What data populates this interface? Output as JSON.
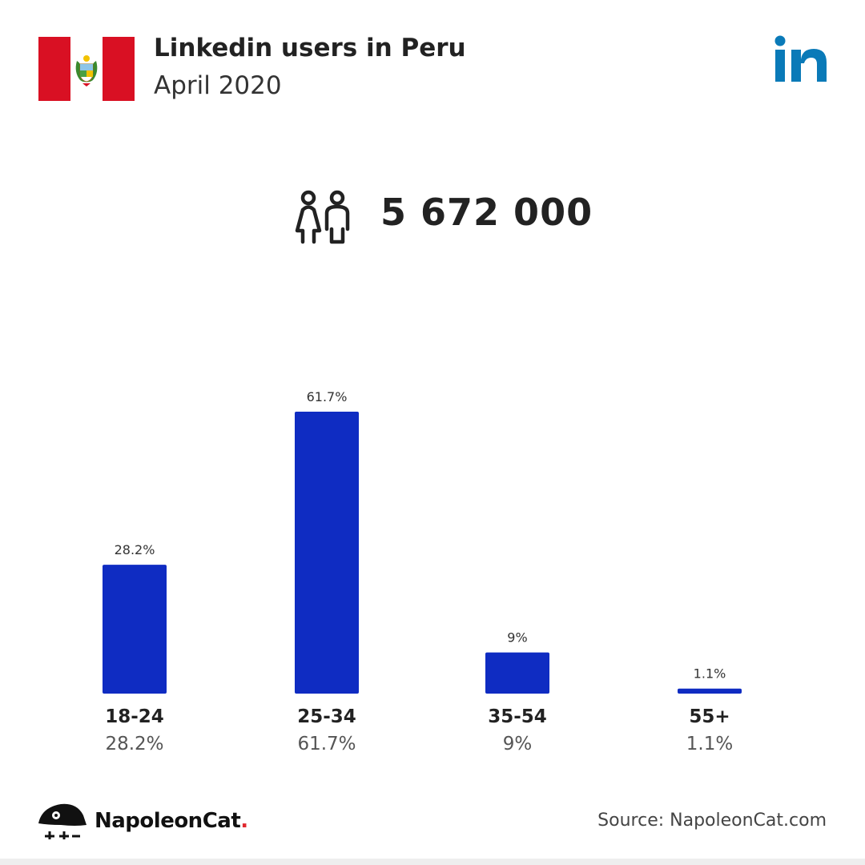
{
  "header": {
    "title": "Linkedin users in Peru",
    "subtitle": "April 2020"
  },
  "total": {
    "value": "5 672 000",
    "icon": "users-icon"
  },
  "chart_data": {
    "type": "bar",
    "categories": [
      "18-24",
      "25-34",
      "35-54",
      "55+"
    ],
    "values": [
      28.2,
      61.7,
      9,
      1.1
    ],
    "value_labels": [
      "28.2%",
      "61.7%",
      "9%",
      "1.1%"
    ],
    "ylim": [
      0,
      61.7
    ],
    "grid": false,
    "color": "#0f2cc2"
  },
  "footer": {
    "brand": "NapoleonCat",
    "brand_dot": ".",
    "source": "Source: NapoleonCat.com"
  },
  "colors": {
    "peru_red": "#d91023",
    "linkedin_blue": "#0a7ab8",
    "bar_blue": "#0f2cc2"
  }
}
